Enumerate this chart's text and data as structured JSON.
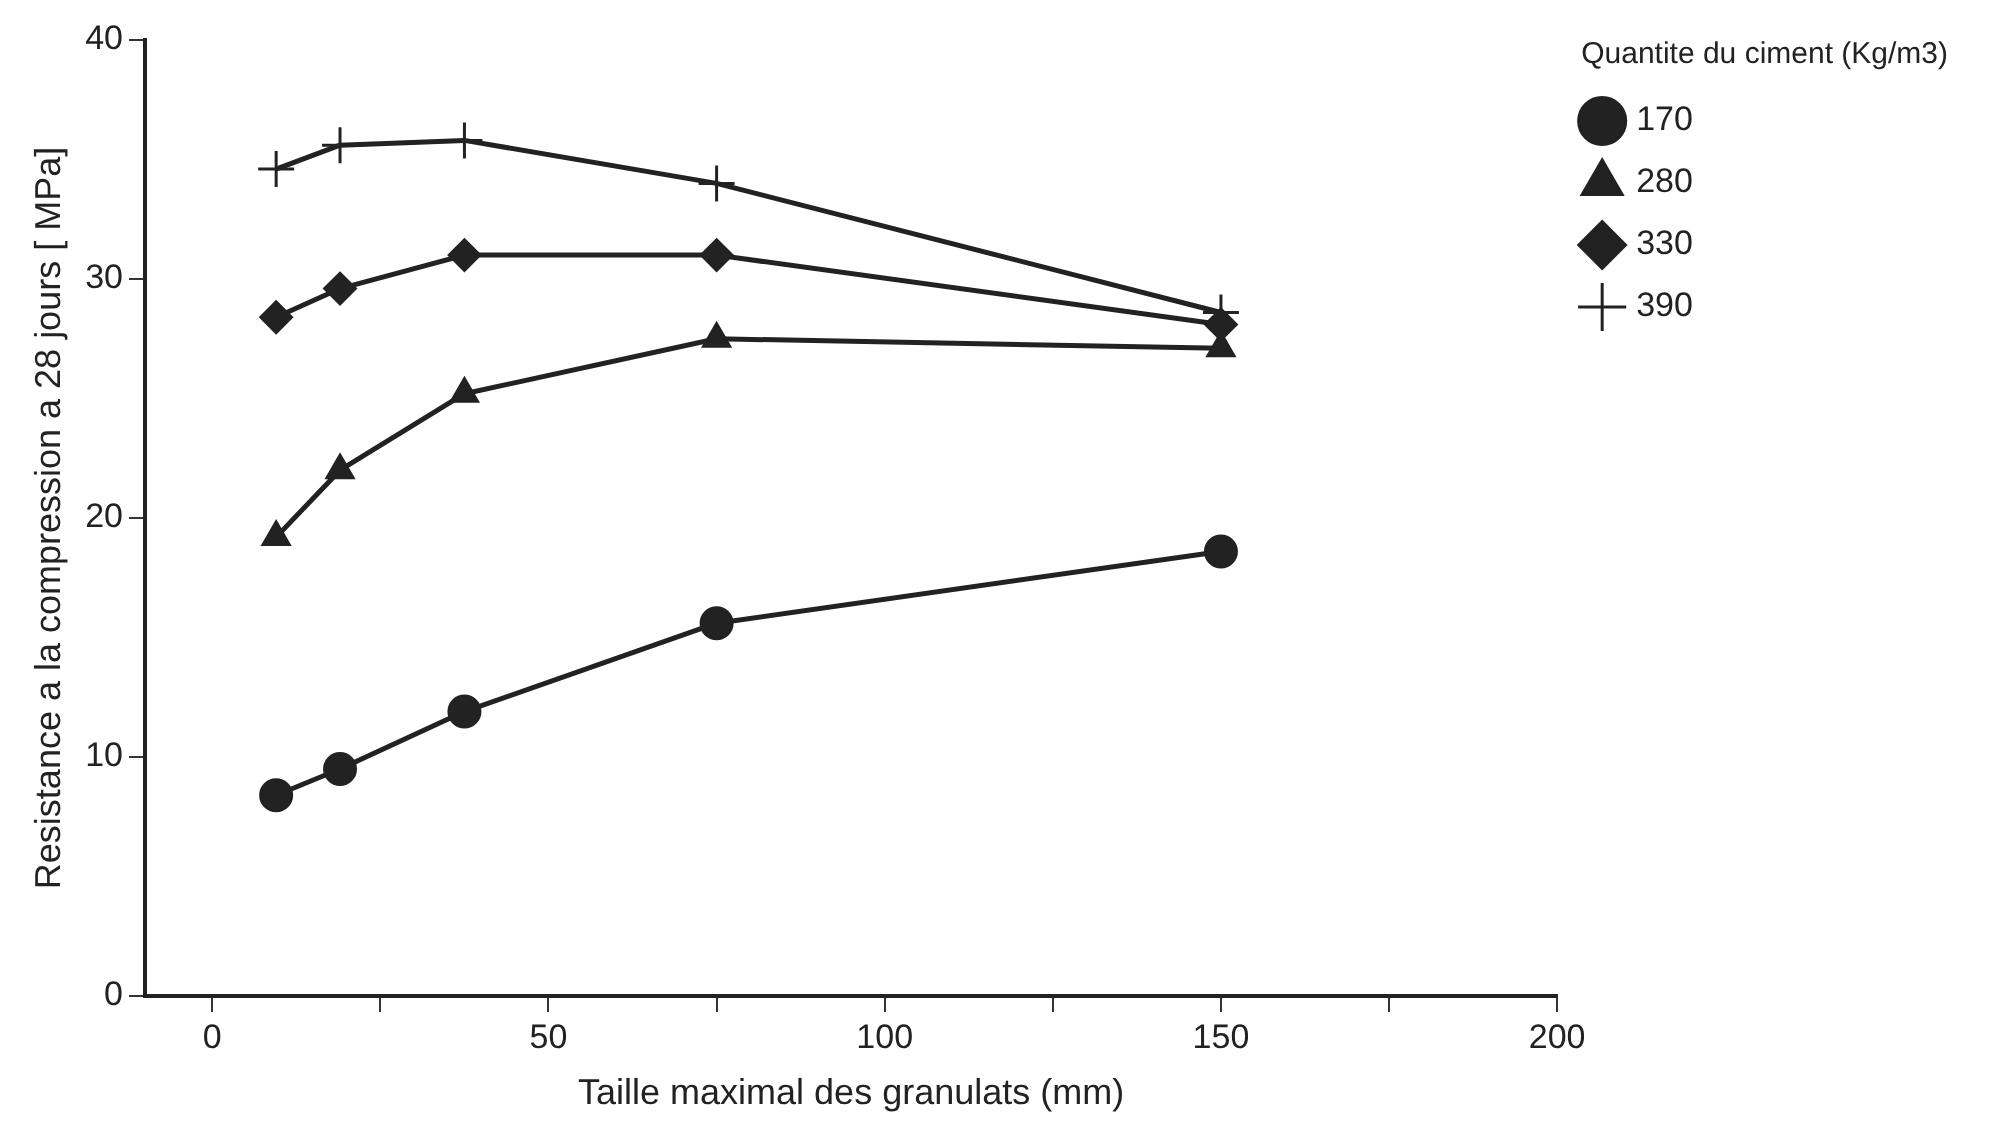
{
  "chart_data": {
    "type": "line",
    "xlabel": "Taille maximal des granulats (mm)",
    "ylabel": "Resistance a la compression a 28 jours [ MPa]",
    "legend_title": "Quantite du ciment (Kg/m3)",
    "x": [
      9.5,
      19,
      37.5,
      75,
      150
    ],
    "series": [
      {
        "name": "170",
        "color": "#222222",
        "marker": "circle",
        "values": [
          8.4,
          9.5,
          11.9,
          15.6,
          18.6
        ]
      },
      {
        "name": "280",
        "color": "#222222",
        "marker": "triangle",
        "values": [
          19.2,
          22.0,
          25.2,
          27.5,
          27.1
        ]
      },
      {
        "name": "330",
        "color": "#222222",
        "marker": "diamond",
        "values": [
          28.4,
          29.6,
          31.0,
          31.0,
          28.1
        ]
      },
      {
        "name": "390",
        "color": "#222222",
        "marker": "cross",
        "values": [
          34.6,
          35.6,
          35.8,
          34.0,
          28.6
        ]
      }
    ],
    "xlim": [
      -10,
      200
    ],
    "xticks": [
      0,
      {
        "value": 25,
        "label": null
      },
      50,
      {
        "value": 75,
        "label": null
      },
      100,
      {
        "value": 125,
        "label": null
      },
      150,
      {
        "value": 175,
        "label": null
      },
      200
    ],
    "ylim": [
      0,
      40
    ],
    "yticks": [
      0,
      10,
      20,
      30,
      40
    ],
    "grid": false,
    "legend": "top right",
    "line_style": "solid"
  }
}
